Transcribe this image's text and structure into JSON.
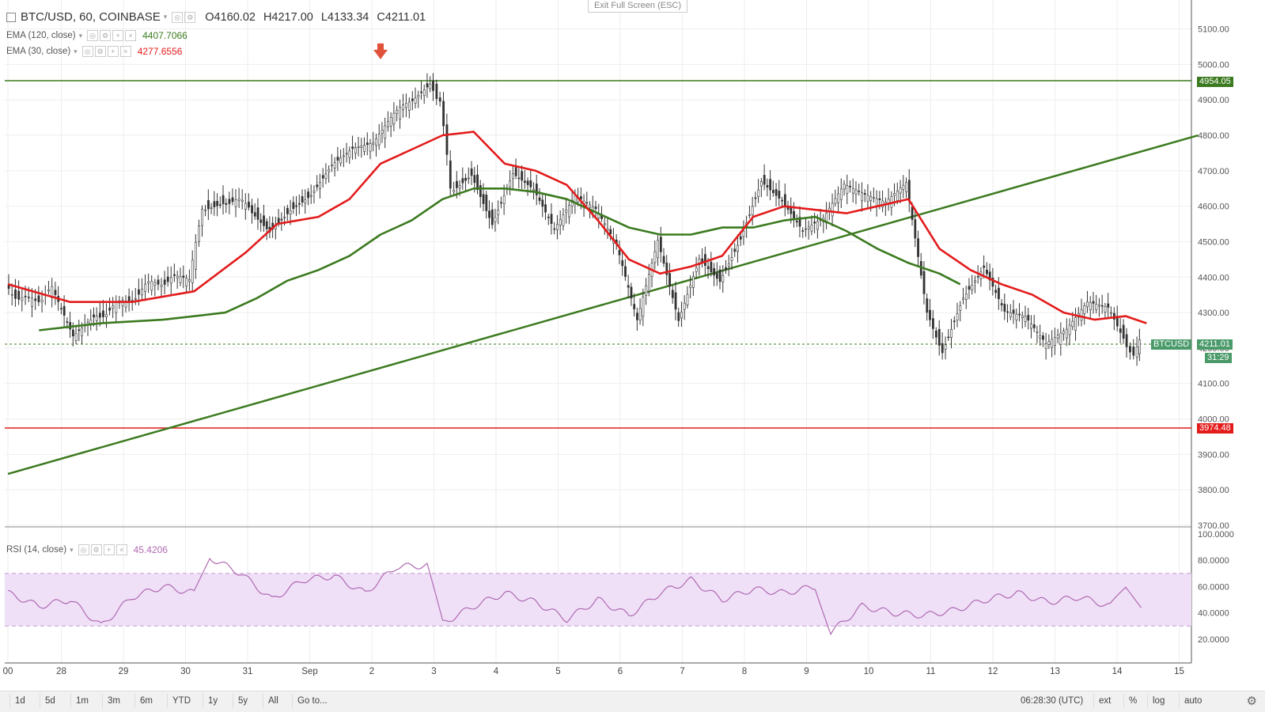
{
  "header": {
    "symbol": "BTC/USD, 60, COINBASE",
    "open": "O4160.02",
    "high": "H4217.00",
    "low": "L4133.34",
    "close": "C4211.01"
  },
  "exit_fullscreen": "Exit Full Screen (ESC)",
  "indicators": {
    "ema120": {
      "label": "EMA (120, close)",
      "value": "4407.7066",
      "color": "#3b7a1f"
    },
    "ema30": {
      "label": "EMA (30, close)",
      "value": "4277.6556",
      "color": "#e31b1b"
    },
    "rsi": {
      "label": "RSI (14, close)",
      "value": "45.4206",
      "color": "#b06ab3"
    }
  },
  "price_tags": {
    "resistance": "4954.05",
    "support": "3974.48",
    "symbol_tag": "BTCUSD",
    "last": "4211.01",
    "countdown": "31:29"
  },
  "chart_data": {
    "type": "candlestick",
    "price_axis": {
      "ticks": [
        "5100.00",
        "5000.00",
        "4900.00",
        "4800.00",
        "4700.00",
        "4600.00",
        "4500.00",
        "4400.00",
        "4300.00",
        "4200.00",
        "4100.00",
        "4000.00",
        "3900.00",
        "3800.00",
        "3700.00"
      ]
    },
    "rsi_axis": {
      "ticks": [
        "100.0000",
        "80.0000",
        "60.0000",
        "40.0000",
        "20.0000"
      ],
      "band": [
        30,
        70
      ]
    },
    "x_axis": {
      "labels": [
        "00",
        "28",
        "29",
        "30",
        "31",
        "Sep",
        "2",
        "3",
        "4",
        "5",
        "6",
        "7",
        "8",
        "9",
        "10",
        "11",
        "12",
        "13",
        "14",
        "15"
      ]
    },
    "horizontal_lines": [
      {
        "price": 4954.05,
        "color": "#3b7a1f"
      },
      {
        "price": 3974.48,
        "color": "#e31b1b"
      },
      {
        "price": 4211.01,
        "color": "#3b7a1f",
        "style": "dashed"
      }
    ],
    "trendline": {
      "from": {
        "date": "Aug 27 00:00",
        "price": 3845
      },
      "to": {
        "date": "Sep 15 04:00",
        "price": 4800
      },
      "color": "#3b7a1f"
    },
    "marker": {
      "date": "Sep 2",
      "price": 4970,
      "color": "#e0523a"
    },
    "price_path": [
      [
        "Aug 27 00:00",
        4370
      ],
      [
        "Aug 27 09:00",
        4330
      ],
      [
        "Aug 27 18:00",
        4360
      ],
      [
        "Aug 28 02:00",
        4230
      ],
      [
        "Aug 28 10:00",
        4290
      ],
      [
        "Aug 28 20:00",
        4320
      ],
      [
        "Aug 29 06:00",
        4370
      ],
      [
        "Aug 29 16:00",
        4400
      ],
      [
        "Aug 29 23:00",
        4380
      ],
      [
        "Aug 30 04:00",
        4600
      ],
      [
        "Aug 30 12:00",
        4620
      ],
      [
        "Aug 30 22:00",
        4600
      ],
      [
        "Aug 31 06:00",
        4540
      ],
      [
        "Aug 31 14:00",
        4600
      ],
      [
        "Aug 31 22:00",
        4640
      ],
      [
        "Sep 1 06:00",
        4720
      ],
      [
        "Sep 1 14:00",
        4760
      ],
      [
        "Sep 1 22:00",
        4770
      ],
      [
        "Sep 2 06:00",
        4850
      ],
      [
        "Sep 2 12:00",
        4890
      ],
      [
        "Sep 2 20:00",
        4950
      ],
      [
        "Sep 3 00:00",
        4900
      ],
      [
        "Sep 3 04:00",
        4650
      ],
      [
        "Sep 3 12:00",
        4700
      ],
      [
        "Sep 3 20:00",
        4560
      ],
      [
        "Sep 4 04:00",
        4700
      ],
      [
        "Sep 4 12:00",
        4650
      ],
      [
        "Sep 4 20:00",
        4530
      ],
      [
        "Sep 5 04:00",
        4620
      ],
      [
        "Sep 5 12:00",
        4580
      ],
      [
        "Sep 5 20:00",
        4480
      ],
      [
        "Sep 6 04:00",
        4270
      ],
      [
        "Sep 6 12:00",
        4500
      ],
      [
        "Sep 6 20:00",
        4280
      ],
      [
        "Sep 7 04:00",
        4460
      ],
      [
        "Sep 7 12:00",
        4400
      ],
      [
        "Sep 7 20:00",
        4520
      ],
      [
        "Sep 8 04:00",
        4680
      ],
      [
        "Sep 8 12:00",
        4620
      ],
      [
        "Sep 8 20:00",
        4530
      ],
      [
        "Sep 9 04:00",
        4560
      ],
      [
        "Sep 9 12:00",
        4650
      ],
      [
        "Sep 9 20:00",
        4620
      ],
      [
        "Sep 10 04:00",
        4600
      ],
      [
        "Sep 10 12:00",
        4660
      ],
      [
        "Sep 10 20:00",
        4300
      ],
      [
        "Sep 11 02:00",
        4200
      ],
      [
        "Sep 11 10:00",
        4350
      ],
      [
        "Sep 11 18:00",
        4430
      ],
      [
        "Sep 12 02:00",
        4300
      ],
      [
        "Sep 12 10:00",
        4280
      ],
      [
        "Sep 12 18:00",
        4200
      ],
      [
        "Sep 13 02:00",
        4240
      ],
      [
        "Sep 13 10:00",
        4320
      ],
      [
        "Sep 13 18:00",
        4310
      ],
      [
        "Sep 14 00:00",
        4240
      ],
      [
        "Sep 14 04:00",
        4170
      ],
      [
        "Sep 14 06:00",
        4211
      ]
    ],
    "ema30": [
      [
        "Aug 27 00:00",
        4380
      ],
      [
        "Aug 28 00:00",
        4330
      ],
      [
        "Aug 29 00:00",
        4330
      ],
      [
        "Aug 30 00:00",
        4360
      ],
      [
        "Aug 30 20:00",
        4470
      ],
      [
        "Aug 31 08:00",
        4550
      ],
      [
        "Sep 1 00:00",
        4570
      ],
      [
        "Sep 1 12:00",
        4620
      ],
      [
        "Sep 2 00:00",
        4720
      ],
      [
        "Sep 2 12:00",
        4760
      ],
      [
        "Sep 3 00:00",
        4800
      ],
      [
        "Sep 3 12:00",
        4810
      ],
      [
        "Sep 4 00:00",
        4720
      ],
      [
        "Sep 4 12:00",
        4700
      ],
      [
        "Sep 5 00:00",
        4660
      ],
      [
        "Sep 5 12:00",
        4560
      ],
      [
        "Sep 6 00:00",
        4450
      ],
      [
        "Sep 6 12:00",
        4410
      ],
      [
        "Sep 7 00:00",
        4430
      ],
      [
        "Sep 7 12:00",
        4460
      ],
      [
        "Sep 8 00:00",
        4570
      ],
      [
        "Sep 8 12:00",
        4600
      ],
      [
        "Sep 9 00:00",
        4590
      ],
      [
        "Sep 9 12:00",
        4580
      ],
      [
        "Sep 10 00:00",
        4600
      ],
      [
        "Sep 10 12:00",
        4620
      ],
      [
        "Sep 11 00:00",
        4480
      ],
      [
        "Sep 11 12:00",
        4420
      ],
      [
        "Sep 12 00:00",
        4380
      ],
      [
        "Sep 12 12:00",
        4350
      ],
      [
        "Sep 13 00:00",
        4300
      ],
      [
        "Sep 13 12:00",
        4280
      ],
      [
        "Sep 14 00:00",
        4290
      ],
      [
        "Sep 14 08:00",
        4270
      ]
    ],
    "ema120": [
      [
        "Aug 27 12:00",
        4250
      ],
      [
        "Aug 28 12:00",
        4270
      ],
      [
        "Aug 29 12:00",
        4280
      ],
      [
        "Aug 30 12:00",
        4300
      ],
      [
        "Aug 31 00:00",
        4340
      ],
      [
        "Aug 31 12:00",
        4390
      ],
      [
        "Sep 1 00:00",
        4420
      ],
      [
        "Sep 1 12:00",
        4460
      ],
      [
        "Sep 2 00:00",
        4520
      ],
      [
        "Sep 2 12:00",
        4560
      ],
      [
        "Sep 3 00:00",
        4620
      ],
      [
        "Sep 3 12:00",
        4650
      ],
      [
        "Sep 4 00:00",
        4650
      ],
      [
        "Sep 4 12:00",
        4640
      ],
      [
        "Sep 5 00:00",
        4620
      ],
      [
        "Sep 5 12:00",
        4580
      ],
      [
        "Sep 6 00:00",
        4540
      ],
      [
        "Sep 6 12:00",
        4520
      ],
      [
        "Sep 7 00:00",
        4520
      ],
      [
        "Sep 7 12:00",
        4540
      ],
      [
        "Sep 8 00:00",
        4540
      ],
      [
        "Sep 8 12:00",
        4560
      ],
      [
        "Sep 9 00:00",
        4570
      ],
      [
        "Sep 9 12:00",
        4530
      ],
      [
        "Sep 10 00:00",
        4480
      ],
      [
        "Sep 10 12:00",
        4440
      ],
      [
        "Sep 11 00:00",
        4410
      ],
      [
        "Sep 11 08:00",
        4380
      ]
    ],
    "rsi_series": [
      [
        "Aug 27 00:00",
        55
      ],
      [
        "Aug 27 12:00",
        45
      ],
      [
        "Aug 28 00:00",
        50
      ],
      [
        "Aug 28 12:00",
        30
      ],
      [
        "Aug 29 00:00",
        52
      ],
      [
        "Aug 29 12:00",
        60
      ],
      [
        "Aug 30 00:00",
        55
      ],
      [
        "Aug 30 06:00",
        82
      ],
      [
        "Aug 30 18:00",
        70
      ],
      [
        "Aug 31 06:00",
        50
      ],
      [
        "Aug 31 18:00",
        65
      ],
      [
        "Sep 1 06:00",
        68
      ],
      [
        "Sep 1 18:00",
        55
      ],
      [
        "Sep 2 06:00",
        75
      ],
      [
        "Sep 2 18:00",
        76
      ],
      [
        "Sep 3 00:00",
        32
      ],
      [
        "Sep 3 12:00",
        45
      ],
      [
        "Sep 4 00:00",
        55
      ],
      [
        "Sep 4 12:00",
        48
      ],
      [
        "Sep 5 00:00",
        35
      ],
      [
        "Sep 5 12:00",
        50
      ],
      [
        "Sep 6 00:00",
        38
      ],
      [
        "Sep 6 12:00",
        55
      ],
      [
        "Sep 7 00:00",
        65
      ],
      [
        "Sep 7 12:00",
        50
      ],
      [
        "Sep 8 00:00",
        58
      ],
      [
        "Sep 8 12:00",
        55
      ],
      [
        "Sep 9 00:00",
        60
      ],
      [
        "Sep 9 06:00",
        25
      ],
      [
        "Sep 9 18:00",
        45
      ],
      [
        "Sep 10 06:00",
        40
      ],
      [
        "Sep 10 18:00",
        38
      ],
      [
        "Sep 11 06:00",
        42
      ],
      [
        "Sep 11 18:00",
        50
      ],
      [
        "Sep 12 06:00",
        55
      ],
      [
        "Sep 12 18:00",
        48
      ],
      [
        "Sep 13 06:00",
        52
      ],
      [
        "Sep 13 18:00",
        45
      ],
      [
        "Sep 14 00:00",
        58
      ],
      [
        "Sep 14 06:00",
        45
      ]
    ]
  },
  "toolbar": {
    "timeframes": [
      "1d",
      "5d",
      "1m",
      "3m",
      "6m",
      "YTD",
      "1y",
      "5y",
      "All",
      "Go to..."
    ],
    "time": "06:28:30 (UTC)",
    "toggles": [
      "ext",
      "%",
      "log",
      "auto"
    ]
  }
}
